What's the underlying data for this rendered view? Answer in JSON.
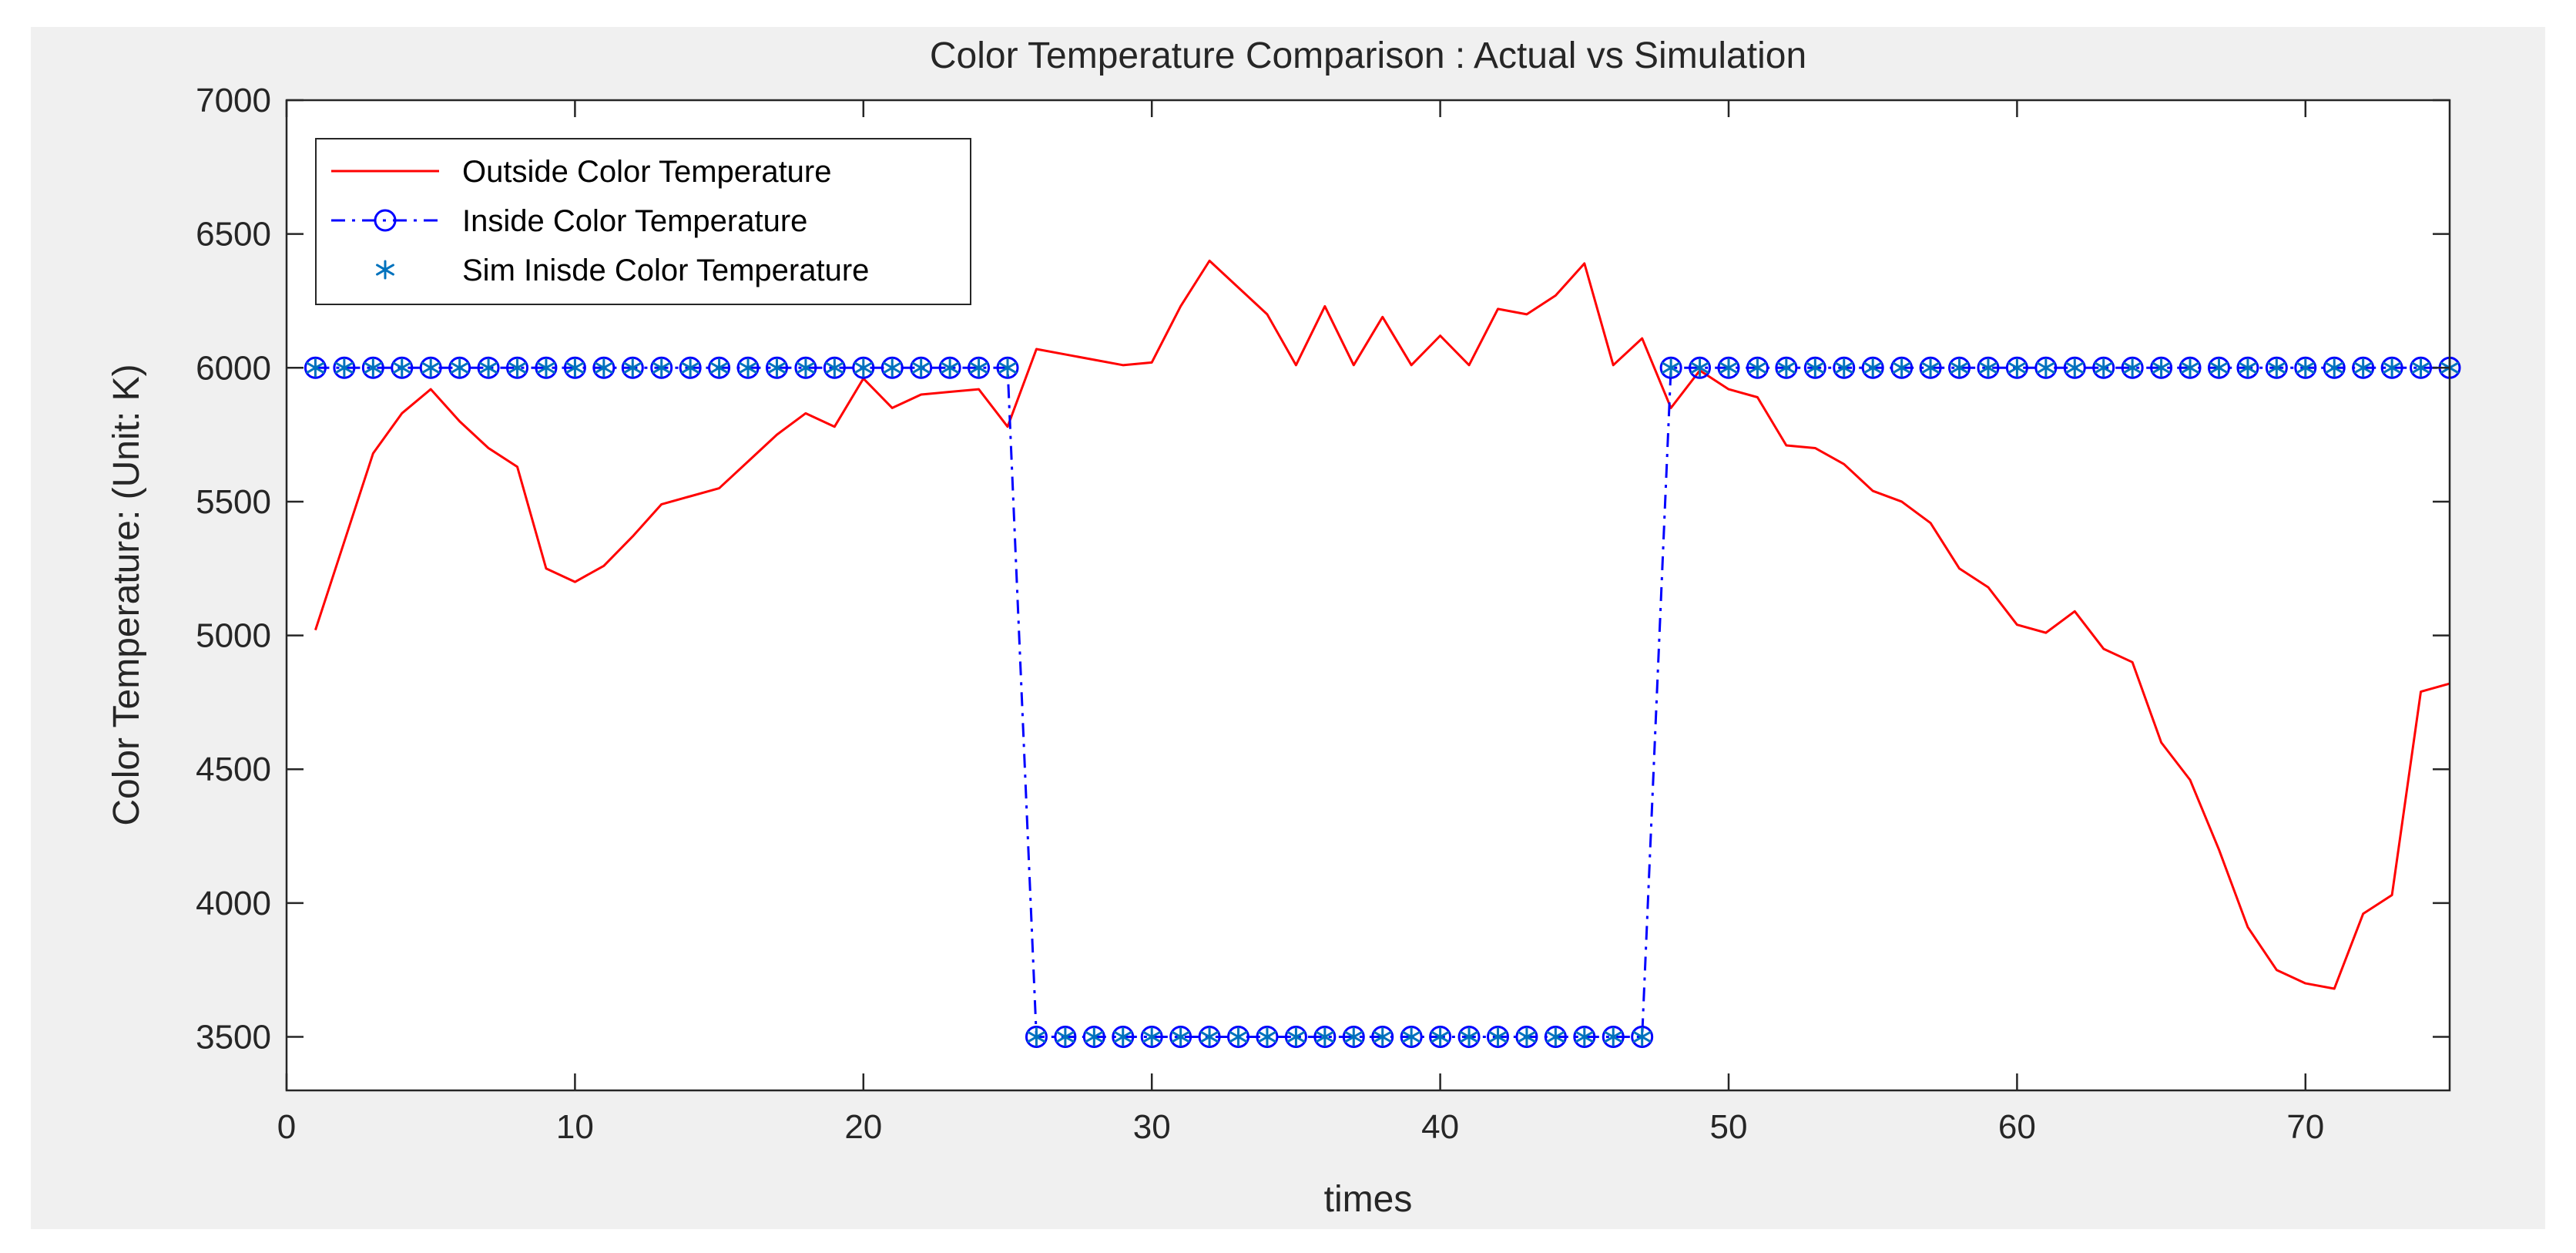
{
  "chart_data": {
    "type": "line",
    "title": "Color Temperature Comparison : Actual vs Simulation",
    "xlabel": "times",
    "ylabel": "Color Temperature: (Unit: K)",
    "xlim": [
      0,
      75
    ],
    "ylim": [
      3300,
      7000
    ],
    "xticks": [
      0,
      10,
      20,
      30,
      40,
      50,
      60,
      70
    ],
    "yticks": [
      3500,
      4000,
      4500,
      5000,
      5500,
      6000,
      6500,
      7000
    ],
    "grid": false,
    "legend_position": "top-left",
    "x": [
      1,
      2,
      3,
      4,
      5,
      6,
      7,
      8,
      9,
      10,
      11,
      12,
      13,
      14,
      15,
      16,
      17,
      18,
      19,
      20,
      21,
      22,
      23,
      24,
      25,
      26,
      27,
      28,
      29,
      30,
      31,
      32,
      33,
      34,
      35,
      36,
      37,
      38,
      39,
      40,
      41,
      42,
      43,
      44,
      45,
      46,
      47,
      48,
      49,
      50,
      51,
      52,
      53,
      54,
      55,
      56,
      57,
      58,
      59,
      60,
      61,
      62,
      63,
      64,
      65,
      66,
      67,
      68,
      69,
      70,
      71,
      72,
      73,
      74,
      75
    ],
    "series": [
      {
        "name": "Outside Color Temperature",
        "color": "#ff0000",
        "style": "solid",
        "marker": "none",
        "values": [
          5020,
          5350,
          5680,
          5830,
          5920,
          5800,
          5700,
          5630,
          5250,
          5200,
          5260,
          5370,
          5490,
          5520,
          5550,
          5650,
          5750,
          5830,
          5780,
          5960,
          5850,
          5900,
          5910,
          5920,
          5780,
          6070,
          6050,
          6030,
          6010,
          6020,
          6230,
          6400,
          6300,
          6200,
          6010,
          6230,
          6010,
          6190,
          6010,
          6120,
          6010,
          6220,
          6200,
          6270,
          6390,
          6010,
          6110,
          5850,
          5990,
          5920,
          5890,
          5710,
          5700,
          5640,
          5540,
          5500,
          5420,
          5250,
          5180,
          5040,
          5010,
          5090,
          4950,
          4900,
          4600,
          4460,
          4200,
          3910,
          3750,
          3700,
          3680,
          3960,
          4030,
          4790,
          4820
        ]
      },
      {
        "name": "Inside Color Temperature",
        "color": "#0000ff",
        "style": "dashdot",
        "marker": "circle",
        "values": [
          6000,
          6000,
          6000,
          6000,
          6000,
          6000,
          6000,
          6000,
          6000,
          6000,
          6000,
          6000,
          6000,
          6000,
          6000,
          6000,
          6000,
          6000,
          6000,
          6000,
          6000,
          6000,
          6000,
          6000,
          6000,
          3500,
          3500,
          3500,
          3500,
          3500,
          3500,
          3500,
          3500,
          3500,
          3500,
          3500,
          3500,
          3500,
          3500,
          3500,
          3500,
          3500,
          3500,
          3500,
          3500,
          3500,
          3500,
          6000,
          6000,
          6000,
          6000,
          6000,
          6000,
          6000,
          6000,
          6000,
          6000,
          6000,
          6000,
          6000,
          6000,
          6000,
          6000,
          6000,
          6000,
          6000,
          6000,
          6000,
          6000,
          6000,
          6000,
          6000,
          6000,
          6000,
          6000
        ]
      },
      {
        "name": "Sim Inisde Color Temperature",
        "color": "#0072bd",
        "style": "none",
        "marker": "asterisk",
        "values": [
          6000,
          6000,
          6000,
          6000,
          6000,
          6000,
          6000,
          6000,
          6000,
          6000,
          6000,
          6000,
          6000,
          6000,
          6000,
          6000,
          6000,
          6000,
          6000,
          6000,
          6000,
          6000,
          6000,
          6000,
          6000,
          3500,
          3500,
          3500,
          3500,
          3500,
          3500,
          3500,
          3500,
          3500,
          3500,
          3500,
          3500,
          3500,
          3500,
          3500,
          3500,
          3500,
          3500,
          3500,
          3500,
          3500,
          3500,
          6000,
          6000,
          6000,
          6000,
          6000,
          6000,
          6000,
          6000,
          6000,
          6000,
          6000,
          6000,
          6000,
          6000,
          6000,
          6000,
          6000,
          6000,
          6000,
          6000,
          6000,
          6000,
          6000,
          6000,
          6000,
          6000,
          6000,
          6000
        ]
      }
    ]
  },
  "colors": {
    "figure_background": "#f0f0f0",
    "axes_background": "#ffffff",
    "axis": "#262626"
  }
}
